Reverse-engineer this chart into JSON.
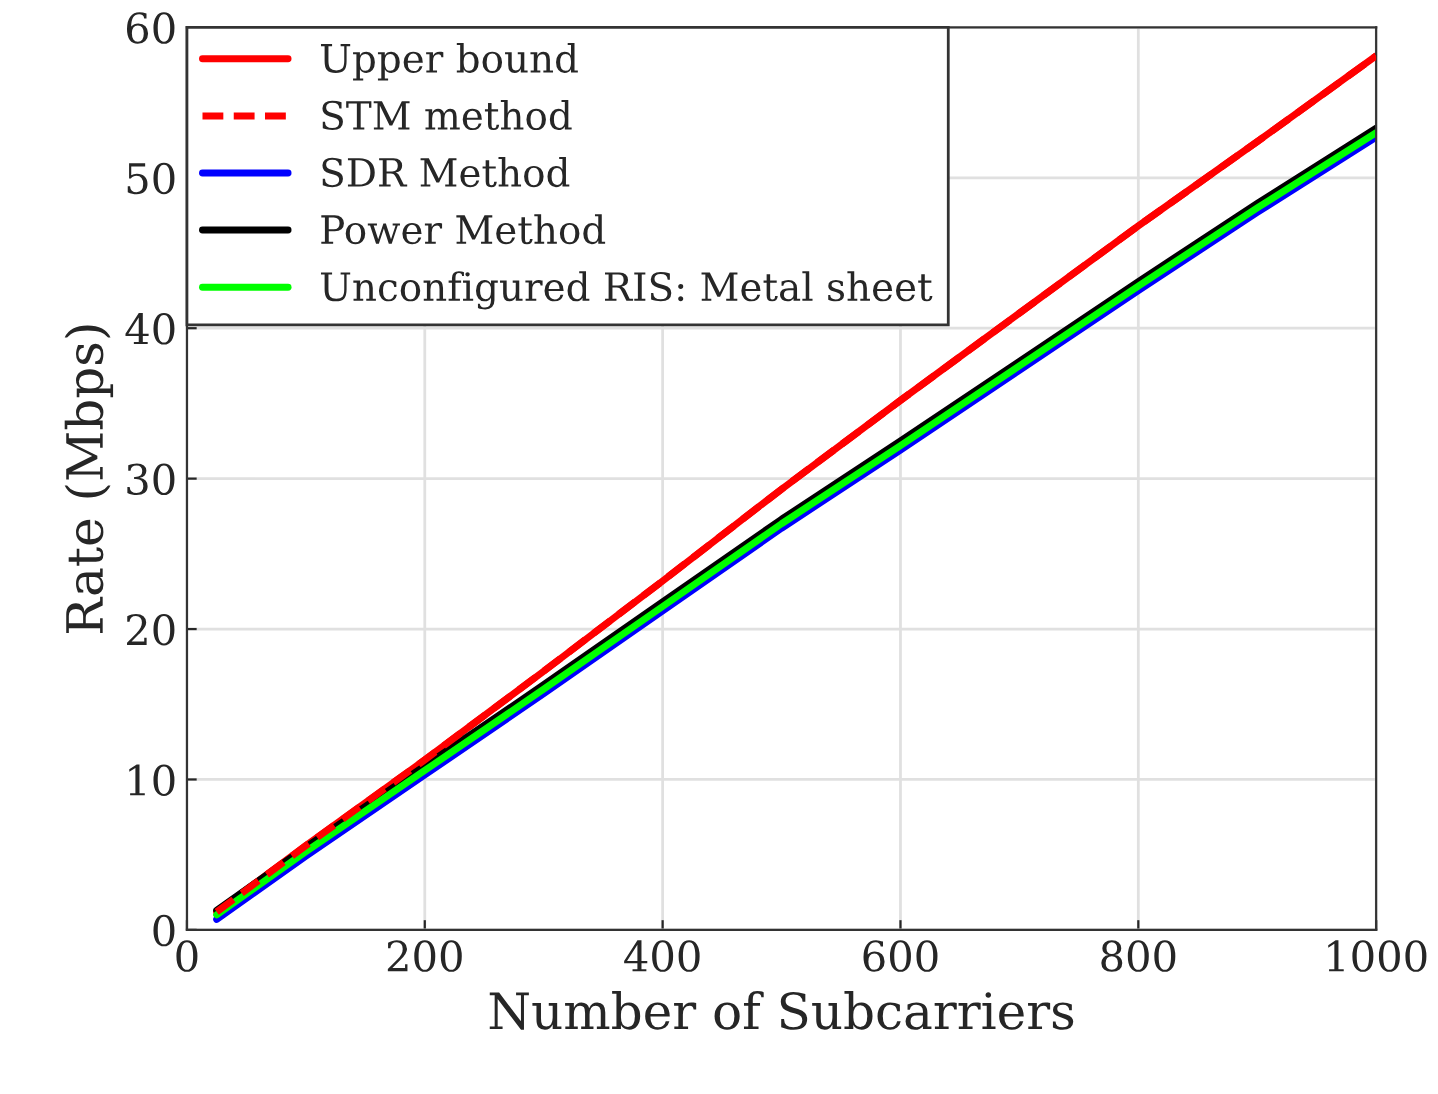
{
  "chart_data": {
    "type": "line",
    "xlabel": "Number of Subcarriers",
    "ylabel": "Rate (Mbps)",
    "x": [
      25,
      100,
      200,
      300,
      400,
      500,
      600,
      700,
      800,
      900,
      1000
    ],
    "series": [
      {
        "name": "Upper bound",
        "color": "#ff0000",
        "line_style": "solid",
        "values": [
          1.2,
          5.6,
          11.3,
          17.2,
          23.2,
          29.3,
          35.2,
          41.0,
          46.8,
          52.4,
          58.1
        ]
      },
      {
        "name": "STM method",
        "color": "#ff0000",
        "line_style": "dashed",
        "values": [
          1.2,
          5.6,
          11.3,
          17.2,
          23.2,
          29.3,
          35.2,
          41.0,
          46.8,
          52.4,
          58.1
        ]
      },
      {
        "name": "SDR Method",
        "color": "#0000ff",
        "line_style": "solid",
        "values": [
          0.7,
          4.9,
          10.3,
          15.7,
          21.2,
          26.7,
          31.9,
          37.2,
          42.5,
          47.7,
          52.7
        ]
      },
      {
        "name": "Power Method",
        "color": "#000000",
        "line_style": "solid",
        "values": [
          1.3,
          5.5,
          10.9,
          16.3,
          21.8,
          27.3,
          32.5,
          37.8,
          43.1,
          48.3,
          53.3
        ]
      },
      {
        "name": "Unconfigured RIS: Metal sheet",
        "color": "#00ff00",
        "line_style": "solid",
        "values": [
          1.0,
          5.2,
          10.6,
          16.0,
          21.5,
          27.0,
          32.2,
          37.5,
          42.8,
          48.0,
          53.0
        ]
      }
    ],
    "xlim": [
      0,
      1000
    ],
    "xticks": [
      0,
      200,
      400,
      600,
      800,
      1000
    ],
    "ylim": [
      0,
      60
    ],
    "yticks": [
      0,
      10,
      20,
      30,
      40,
      50,
      60
    ],
    "grid": true,
    "legend": "top left",
    "marker": "none"
  }
}
